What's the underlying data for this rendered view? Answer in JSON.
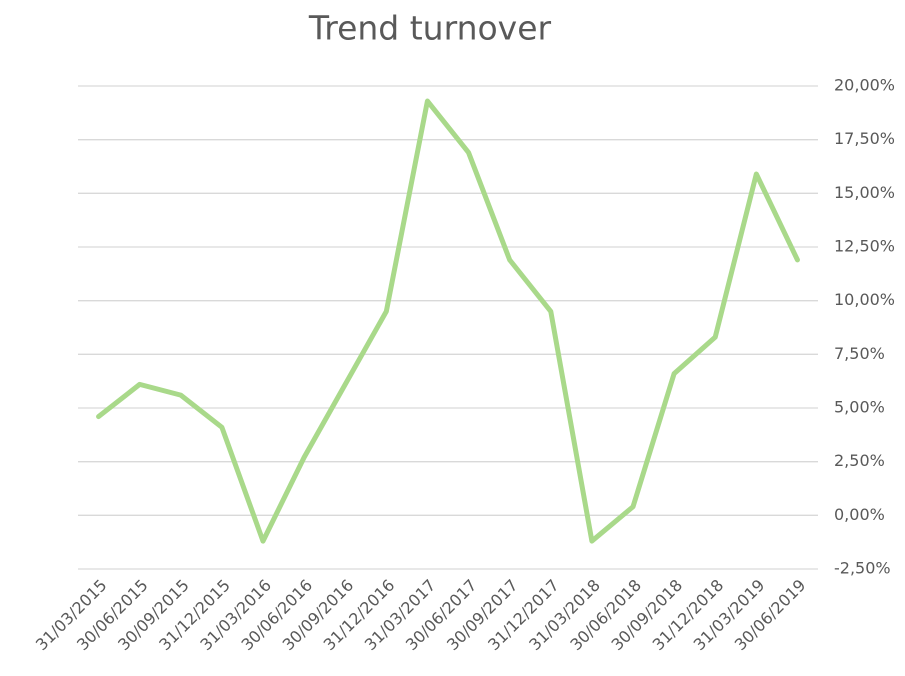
{
  "chart_data": {
    "type": "line",
    "title": "Trend turnover",
    "categories": [
      "31/03/2015",
      "30/06/2015",
      "30/09/2015",
      "31/12/2015",
      "31/03/2016",
      "30/06/2016",
      "30/09/2016",
      "31/12/2016",
      "31/03/2017",
      "30/06/2017",
      "30/09/2017",
      "31/12/2017",
      "31/03/2018",
      "30/06/2018",
      "30/09/2018",
      "31/12/2018",
      "31/03/2019",
      "30/06/2019"
    ],
    "series": [
      {
        "name": "Trend turnover",
        "color": "#a9d98a",
        "values": [
          4.6,
          6.1,
          5.6,
          4.1,
          -1.2,
          2.7,
          6.1,
          9.5,
          19.3,
          16.9,
          11.9,
          9.5,
          -1.2,
          0.4,
          6.6,
          8.3,
          15.9,
          11.9
        ]
      }
    ],
    "ylim": [
      -2.5,
      20
    ],
    "yticks": [
      {
        "value": -2.5,
        "label": "-2,50%"
      },
      {
        "value": 0,
        "label": "0,00%"
      },
      {
        "value": 2.5,
        "label": "2,50%"
      },
      {
        "value": 5,
        "label": "5,00%"
      },
      {
        "value": 7.5,
        "label": "7,50%"
      },
      {
        "value": 10,
        "label": "10,00%"
      },
      {
        "value": 12.5,
        "label": "12,50%"
      },
      {
        "value": 15,
        "label": "15,00%"
      },
      {
        "value": 17.5,
        "label": "17,50%"
      },
      {
        "value": 20,
        "label": "20,00%"
      }
    ],
    "grid": true,
    "y_axis_side": "right"
  }
}
